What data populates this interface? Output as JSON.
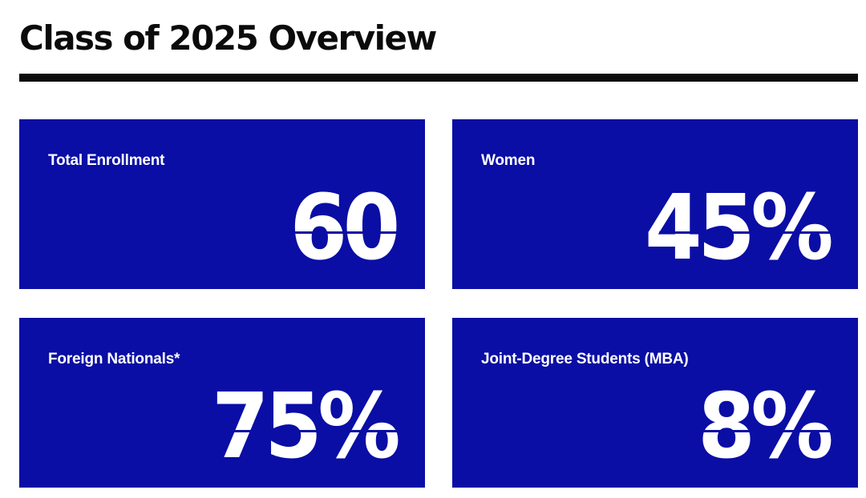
{
  "page": {
    "title": "Class of 2025 Overview"
  },
  "colors": {
    "card_background": "#0a0ea4",
    "card_text": "#ffffff",
    "title_text": "#0b0b0b",
    "rule": "#0b0b0b"
  },
  "stats": [
    {
      "label": "Total Enrollment",
      "value": "60"
    },
    {
      "label": "Women",
      "value": "45%"
    },
    {
      "label": "Foreign Nationals*",
      "value": "75%"
    },
    {
      "label": "Joint-Degree Students (MBA)",
      "value": "8%"
    }
  ]
}
